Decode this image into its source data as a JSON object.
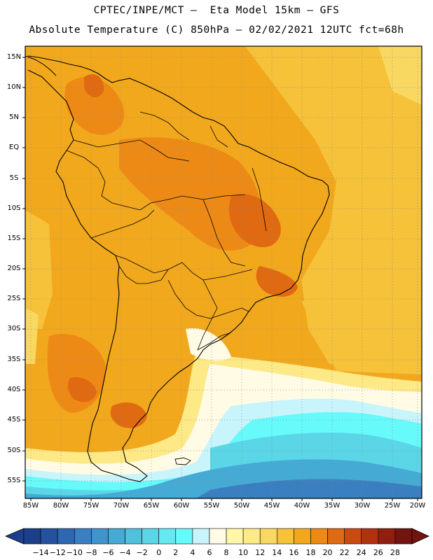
{
  "header": {
    "line1": "CPTEC/INPE/MCT –  Eta Model 15km – GFS",
    "line2": "Absolute Temperature (C) 850hPa – 02/02/2021 12UTC fct=68h"
  },
  "map": {
    "lat_labels": [
      "15N",
      "10N",
      "5N",
      "EQ",
      "5S",
      "10S",
      "15S",
      "20S",
      "25S",
      "30S",
      "35S",
      "40S",
      "45S",
      "50S",
      "55S"
    ],
    "lon_labels": [
      "85W",
      "80W",
      "75W",
      "70W",
      "65W",
      "60W",
      "55W",
      "50W",
      "45W",
      "40W",
      "35W",
      "30W",
      "25W",
      "20W"
    ]
  },
  "colorbar": {
    "labels": [
      "-14",
      "-12",
      "-10",
      "-8",
      "-6",
      "-4",
      "-2",
      "0",
      "2",
      "4",
      "6",
      "8",
      "10",
      "12",
      "14",
      "16",
      "18",
      "20",
      "22",
      "24",
      "26",
      "28"
    ],
    "colors": [
      "#1c3f8c",
      "#24529f",
      "#2f68b0",
      "#3a7fbf",
      "#3f95c9",
      "#45aad4",
      "#4fc1dd",
      "#5ad6e6",
      "#62eaef",
      "#66fafa",
      "#c8f4fb",
      "#fffbe4",
      "#fff7a8",
      "#fde986",
      "#f9d862",
      "#f6c23a",
      "#f2a81c",
      "#ed8a16",
      "#e06a12",
      "#cc4a10",
      "#b23210",
      "#921e10",
      "#741410"
    ]
  }
}
